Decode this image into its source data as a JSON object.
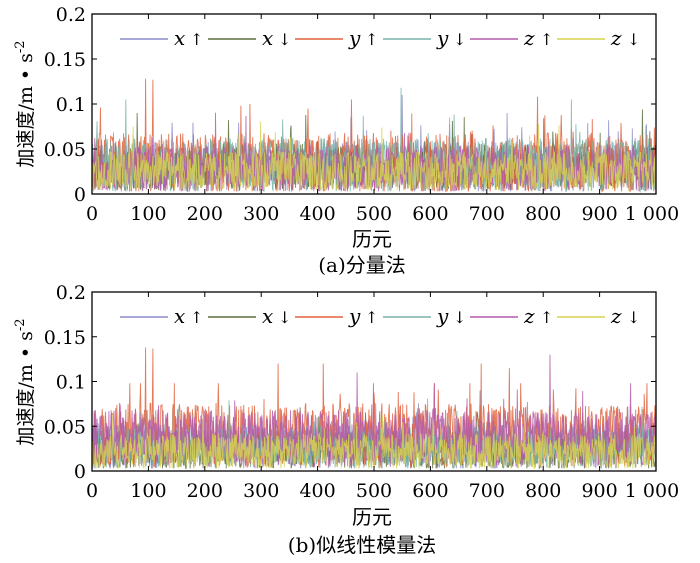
{
  "chart_data": [
    {
      "type": "line",
      "caption": "(a)分量法",
      "xlabel": "历元",
      "ylabel": "加速度/m • s",
      "ylabel_sup": "-2",
      "xlim": [
        0,
        1000
      ],
      "ylim": [
        0,
        0.2
      ],
      "xticks": [
        0,
        100,
        200,
        300,
        400,
        500,
        600,
        700,
        800,
        900,
        1000
      ],
      "xtick_labels": [
        "0",
        "100",
        "200",
        "300",
        "400",
        "500",
        "600",
        "700",
        "800",
        "900",
        "1 000"
      ],
      "yticks": [
        0,
        0.05,
        0.1,
        0.15,
        0.2
      ],
      "ytick_labels": [
        "0",
        "0.05",
        "0.1",
        "0.15",
        "0.2"
      ],
      "legend_position": "top",
      "series": [
        {
          "name": "x",
          "arrow": "↑",
          "color": "#8c8cc8",
          "seed": 11,
          "base": 0.03,
          "spread": 0.028,
          "peaks": [
            [
              550,
              0.11
            ]
          ]
        },
        {
          "name": "x",
          "arrow": "↓",
          "color": "#5a6e3c",
          "seed": 23,
          "base": 0.03,
          "spread": 0.026,
          "peaks": [
            [
              80,
              0.09
            ]
          ]
        },
        {
          "name": "y",
          "arrow": "↑",
          "color": "#e0623c",
          "seed": 37,
          "base": 0.034,
          "spread": 0.034,
          "peaks": [
            [
              95,
              0.128
            ],
            [
              108,
              0.127
            ],
            [
              280,
              0.1
            ],
            [
              460,
              0.105
            ],
            [
              790,
              0.108
            ]
          ]
        },
        {
          "name": "y",
          "arrow": "↓",
          "color": "#78b4aa",
          "seed": 41,
          "base": 0.032,
          "spread": 0.03,
          "peaks": [
            [
              548,
              0.118
            ],
            [
              850,
              0.105
            ],
            [
              60,
              0.105
            ]
          ]
        },
        {
          "name": "z",
          "arrow": "↑",
          "color": "#b45aaa",
          "seed": 53,
          "base": 0.028,
          "spread": 0.026,
          "peaks": []
        },
        {
          "name": "z",
          "arrow": "↓",
          "color": "#d7d250",
          "seed": 67,
          "base": 0.026,
          "spread": 0.022,
          "peaks": []
        }
      ]
    },
    {
      "type": "line",
      "caption": "(b)似线性模量法",
      "xlabel": "历元",
      "ylabel": "加速度/m • s",
      "ylabel_sup": "-2",
      "xlim": [
        0,
        1000
      ],
      "ylim": [
        0,
        0.2
      ],
      "xticks": [
        0,
        100,
        200,
        300,
        400,
        500,
        600,
        700,
        800,
        900,
        1000
      ],
      "xtick_labels": [
        "0",
        "100",
        "200",
        "300",
        "400",
        "500",
        "600",
        "700",
        "800",
        "900",
        "1 000"
      ],
      "yticks": [
        0,
        0.05,
        0.1,
        0.15,
        0.2
      ],
      "ytick_labels": [
        "0",
        "0.05",
        "0.1",
        "0.15",
        "0.2"
      ],
      "legend_position": "top",
      "series": [
        {
          "name": "x",
          "arrow": "↑",
          "color": "#8c8cc8",
          "seed": 71,
          "base": 0.028,
          "spread": 0.026,
          "peaks": []
        },
        {
          "name": "x",
          "arrow": "↓",
          "color": "#5a6e3c",
          "seed": 83,
          "base": 0.024,
          "spread": 0.022,
          "peaks": []
        },
        {
          "name": "y",
          "arrow": "↑",
          "color": "#e0623c",
          "seed": 97,
          "base": 0.04,
          "spread": 0.036,
          "peaks": [
            [
              95,
              0.138
            ],
            [
              108,
              0.137
            ],
            [
              330,
              0.12
            ],
            [
              410,
              0.12
            ],
            [
              690,
              0.12
            ],
            [
              740,
              0.115
            ]
          ]
        },
        {
          "name": "y",
          "arrow": "↓",
          "color": "#78b4aa",
          "seed": 101,
          "base": 0.028,
          "spread": 0.024,
          "peaks": []
        },
        {
          "name": "z",
          "arrow": "↑",
          "color": "#b45aaa",
          "seed": 113,
          "base": 0.036,
          "spread": 0.032,
          "peaks": [
            [
              812,
              0.13
            ],
            [
              470,
              0.11
            ]
          ]
        },
        {
          "name": "z",
          "arrow": "↓",
          "color": "#d7d250",
          "seed": 127,
          "base": 0.022,
          "spread": 0.02,
          "peaks": []
        }
      ]
    }
  ]
}
